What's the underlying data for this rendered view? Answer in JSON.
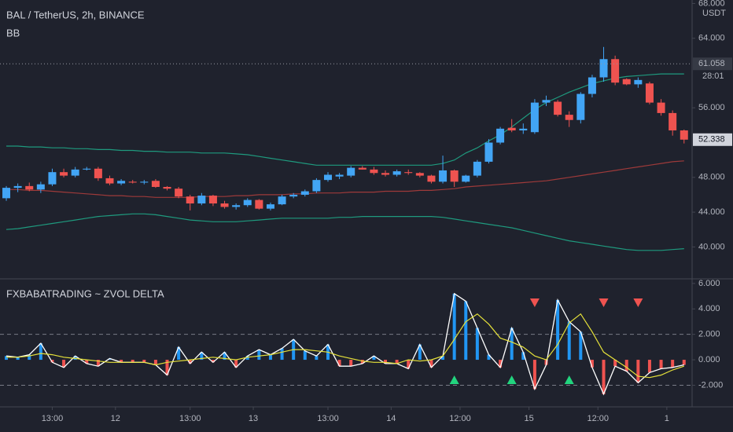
{
  "chart_data": [
    {
      "type": "candlestick",
      "title": "BAL / TetherUS, 2h, BINANCE",
      "subtitle": "BB",
      "unit": "USDT",
      "x": [
        -19,
        -17,
        -15,
        -13,
        -11,
        -9,
        -7,
        -5,
        -3,
        -1,
        1,
        3,
        5,
        7,
        9,
        11,
        13,
        15,
        17,
        19,
        21,
        23,
        25,
        27,
        29,
        31,
        33,
        35,
        37,
        39,
        41,
        43,
        45,
        47,
        49,
        51,
        53,
        55,
        57,
        59,
        61,
        63,
        65,
        67,
        69,
        71,
        73,
        75,
        77,
        79,
        81,
        83,
        85,
        87,
        89,
        91,
        93,
        95,
        97,
        99
      ],
      "open": [
        45.6,
        46.8,
        47.0,
        46.6,
        47.2,
        48.6,
        48.2,
        48.9,
        49.0,
        47.9,
        47.3,
        47.5,
        47.4,
        47.6,
        46.9,
        46.7,
        45.8,
        45.0,
        45.9,
        45.0,
        44.6,
        44.8,
        45.4,
        44.4,
        44.9,
        45.8,
        46.0,
        46.4,
        47.7,
        48.1,
        48.2,
        49.1,
        48.9,
        48.5,
        48.3,
        48.6,
        48.5,
        48.2,
        47.5,
        48.8,
        47.5,
        48.2,
        49.8,
        52.0,
        53.7,
        53.4,
        53.2,
        56.6,
        56.7,
        55.2,
        54.6,
        57.6,
        59.5,
        61.6,
        59.3,
        58.7,
        58.8,
        56.6,
        55.4,
        53.4
      ],
      "high": [
        47.0,
        47.3,
        47.4,
        47.5,
        49.0,
        49.0,
        49.2,
        49.2,
        49.2,
        48.2,
        47.8,
        47.7,
        47.7,
        47.8,
        47.0,
        46.9,
        46.0,
        46.2,
        46.0,
        45.3,
        45.0,
        45.6,
        45.5,
        45.1,
        46.0,
        46.2,
        46.6,
        47.9,
        48.6,
        48.5,
        49.3,
        49.3,
        49.2,
        48.8,
        48.9,
        48.9,
        48.6,
        48.3,
        50.5,
        48.9,
        48.3,
        50.0,
        52.4,
        53.8,
        54.7,
        54.2,
        57.0,
        57.4,
        56.9,
        55.6,
        57.8,
        59.8,
        63.0,
        62.0,
        59.4,
        59.5,
        59.0,
        57.0,
        55.7,
        53.5
      ],
      "low": [
        45.3,
        46.3,
        46.4,
        46.2,
        47.0,
        48.0,
        48.0,
        48.8,
        47.6,
        47.1,
        47.1,
        47.3,
        47.2,
        46.8,
        46.5,
        45.6,
        44.2,
        44.8,
        44.7,
        44.4,
        44.3,
        44.6,
        44.3,
        44.2,
        44.8,
        45.6,
        45.8,
        46.2,
        47.5,
        47.8,
        48.0,
        48.9,
        48.3,
        48.1,
        48.1,
        48.3,
        48.0,
        47.3,
        47.3,
        46.9,
        47.4,
        48.0,
        49.6,
        51.8,
        53.2,
        53.0,
        53.0,
        56.2,
        55.0,
        53.8,
        54.2,
        57.2,
        59.0,
        58.6,
        58.6,
        58.3,
        56.4,
        55.1,
        52.8,
        51.9
      ],
      "close": [
        46.8,
        47.0,
        46.6,
        47.2,
        48.6,
        48.2,
        48.9,
        49.0,
        47.9,
        47.3,
        47.6,
        47.4,
        47.5,
        46.9,
        46.7,
        45.8,
        45.0,
        45.9,
        45.0,
        44.6,
        44.8,
        45.4,
        44.4,
        44.9,
        45.8,
        46.0,
        46.4,
        47.7,
        48.3,
        48.3,
        49.1,
        48.9,
        48.5,
        48.3,
        48.7,
        48.5,
        48.2,
        47.5,
        48.8,
        47.5,
        48.2,
        49.8,
        52.0,
        53.6,
        53.4,
        53.6,
        56.6,
        56.9,
        55.2,
        54.6,
        57.6,
        59.5,
        61.6,
        58.9,
        58.7,
        59.2,
        56.6,
        55.4,
        53.4,
        52.338
      ],
      "up_color": "#42a5f5",
      "down_color": "#ef5350",
      "bands": {
        "band_color": "#1f9a7e",
        "basis_color": "#9e3a3a",
        "upper": [
          51.6,
          51.6,
          51.5,
          51.5,
          51.4,
          51.4,
          51.3,
          51.3,
          51.2,
          51.2,
          51.1,
          51.1,
          51.0,
          51.0,
          50.9,
          50.9,
          50.9,
          50.8,
          50.8,
          50.8,
          50.7,
          50.6,
          50.4,
          50.2,
          50.0,
          49.8,
          49.6,
          49.4,
          49.4,
          49.4,
          49.4,
          49.4,
          49.4,
          49.4,
          49.4,
          49.4,
          49.4,
          49.4,
          49.6,
          50.0,
          50.8,
          51.4,
          52.2,
          52.9,
          53.8,
          54.8,
          55.8,
          56.6,
          57.2,
          57.8,
          58.3,
          58.8,
          59.1,
          59.4,
          59.6,
          59.7,
          59.8,
          59.9,
          59.9,
          59.9
        ],
        "basis": [
          46.6,
          46.6,
          46.5,
          46.5,
          46.4,
          46.3,
          46.2,
          46.1,
          46.0,
          45.9,
          45.9,
          45.8,
          45.8,
          45.7,
          45.7,
          45.7,
          45.7,
          45.8,
          45.8,
          45.8,
          45.9,
          45.9,
          46.0,
          46.0,
          46.0,
          46.1,
          46.1,
          46.2,
          46.2,
          46.2,
          46.3,
          46.3,
          46.3,
          46.4,
          46.4,
          46.4,
          46.5,
          46.5,
          46.6,
          46.7,
          46.9,
          47.0,
          47.1,
          47.2,
          47.3,
          47.4,
          47.5,
          47.6,
          47.8,
          48.0,
          48.2,
          48.4,
          48.6,
          48.8,
          49.0,
          49.2,
          49.4,
          49.6,
          49.8,
          49.9
        ],
        "lower": [
          42.0,
          42.1,
          42.3,
          42.5,
          42.7,
          42.9,
          43.1,
          43.3,
          43.5,
          43.6,
          43.7,
          43.8,
          43.8,
          43.7,
          43.5,
          43.3,
          43.1,
          43.0,
          42.9,
          42.9,
          42.9,
          43.0,
          43.1,
          43.2,
          43.3,
          43.3,
          43.3,
          43.3,
          43.3,
          43.4,
          43.4,
          43.5,
          43.5,
          43.5,
          43.5,
          43.5,
          43.5,
          43.5,
          43.4,
          43.2,
          43.0,
          42.8,
          42.6,
          42.4,
          42.2,
          41.9,
          41.6,
          41.3,
          41.0,
          40.7,
          40.5,
          40.3,
          40.1,
          39.9,
          39.7,
          39.6,
          39.6,
          39.6,
          39.7,
          39.8
        ]
      },
      "price_line": {
        "value": 61.058,
        "label": "61.058"
      },
      "countdown": "28:01",
      "current_price": {
        "value": 52.338,
        "label": "52.338"
      },
      "ylim": [
        36.6,
        68.4
      ],
      "yticks": [
        {
          "value": 40,
          "label": "40.000"
        },
        {
          "value": 44,
          "label": "44.000"
        },
        {
          "value": 48,
          "label": "48.000"
        },
        {
          "value": 56,
          "label": "56.000"
        },
        {
          "value": 64,
          "label": "64.000"
        },
        {
          "value": 68,
          "label": "68.000"
        }
      ],
      "xlim": [
        -20.1,
        100.4
      ],
      "xticks": [
        {
          "value": -11,
          "label": "13:00"
        },
        {
          "value": 0,
          "label": "12"
        },
        {
          "value": 13,
          "label": "13:00"
        },
        {
          "value": 24,
          "label": "13"
        },
        {
          "value": 37,
          "label": "13:00"
        },
        {
          "value": 48,
          "label": "14"
        },
        {
          "value": 60,
          "label": "12:00"
        },
        {
          "value": 72,
          "label": "15"
        },
        {
          "value": 84,
          "label": "12:00"
        },
        {
          "value": 96,
          "label": "1"
        }
      ]
    },
    {
      "type": "histogram",
      "title": "FXBABATRADING ~ ZVOL DELTA",
      "values": [
        0.3,
        0.2,
        0.4,
        1.3,
        -0.2,
        -0.6,
        0.3,
        -0.3,
        -0.5,
        0.1,
        -0.2,
        -0.2,
        -0.2,
        -0.4,
        -1.2,
        1.0,
        -0.3,
        0.6,
        -0.2,
        0.6,
        -0.6,
        0.3,
        0.8,
        0.4,
        0.9,
        1.6,
        0.7,
        0.3,
        1.2,
        -0.5,
        -0.5,
        -0.3,
        0.3,
        -0.3,
        -0.3,
        -0.7,
        1.2,
        -0.6,
        0.3,
        5.2,
        4.6,
        2.5,
        0.4,
        -0.6,
        2.5,
        0.6,
        -2.3,
        -0.4,
        4.7,
        3.0,
        2.2,
        -0.6,
        -2.7,
        -0.5,
        -0.9,
        -1.8,
        -1.0,
        -0.7,
        -0.6,
        -0.4
      ],
      "up_color": "#2196f3",
      "down_color": "#ef5350",
      "line_color": "#ffffff",
      "signal": {
        "color": "#e6e23a",
        "values": [
          0.2,
          0.2,
          0.3,
          0.5,
          0.4,
          0.2,
          0.1,
          0.0,
          -0.1,
          -0.2,
          -0.2,
          -0.2,
          -0.2,
          -0.4,
          -0.2,
          -0.1,
          0.0,
          0.1,
          0.2,
          0.1,
          0.0,
          0.2,
          0.3,
          0.4,
          0.6,
          0.8,
          0.8,
          0.7,
          0.6,
          0.3,
          0.1,
          -0.1,
          -0.2,
          -0.2,
          -0.3,
          0.0,
          -0.1,
          0.0,
          0.3,
          1.6,
          3.0,
          3.6,
          2.8,
          1.7,
          1.4,
          1.0,
          0.3,
          0.0,
          1.2,
          2.9,
          3.6,
          2.2,
          0.6,
          0.0,
          -0.6,
          -1.3,
          -1.4,
          -1.2,
          -0.8,
          -0.5
        ]
      },
      "buy_signals": [
        59,
        69,
        79
      ],
      "buy_color": "#22d47e",
      "sell_signals": [
        73,
        85,
        91
      ],
      "sell_color": "#ef5350",
      "levels": [
        2,
        -2
      ],
      "ylim": [
        -3.7,
        6.3
      ],
      "yticks": [
        {
          "value": 6,
          "label": "6.000"
        },
        {
          "value": 4,
          "label": "4.000"
        },
        {
          "value": 2,
          "label": "2.000"
        },
        {
          "value": 0,
          "label": "0.000"
        },
        {
          "value": -2,
          "label": "-2.000"
        }
      ]
    }
  ]
}
